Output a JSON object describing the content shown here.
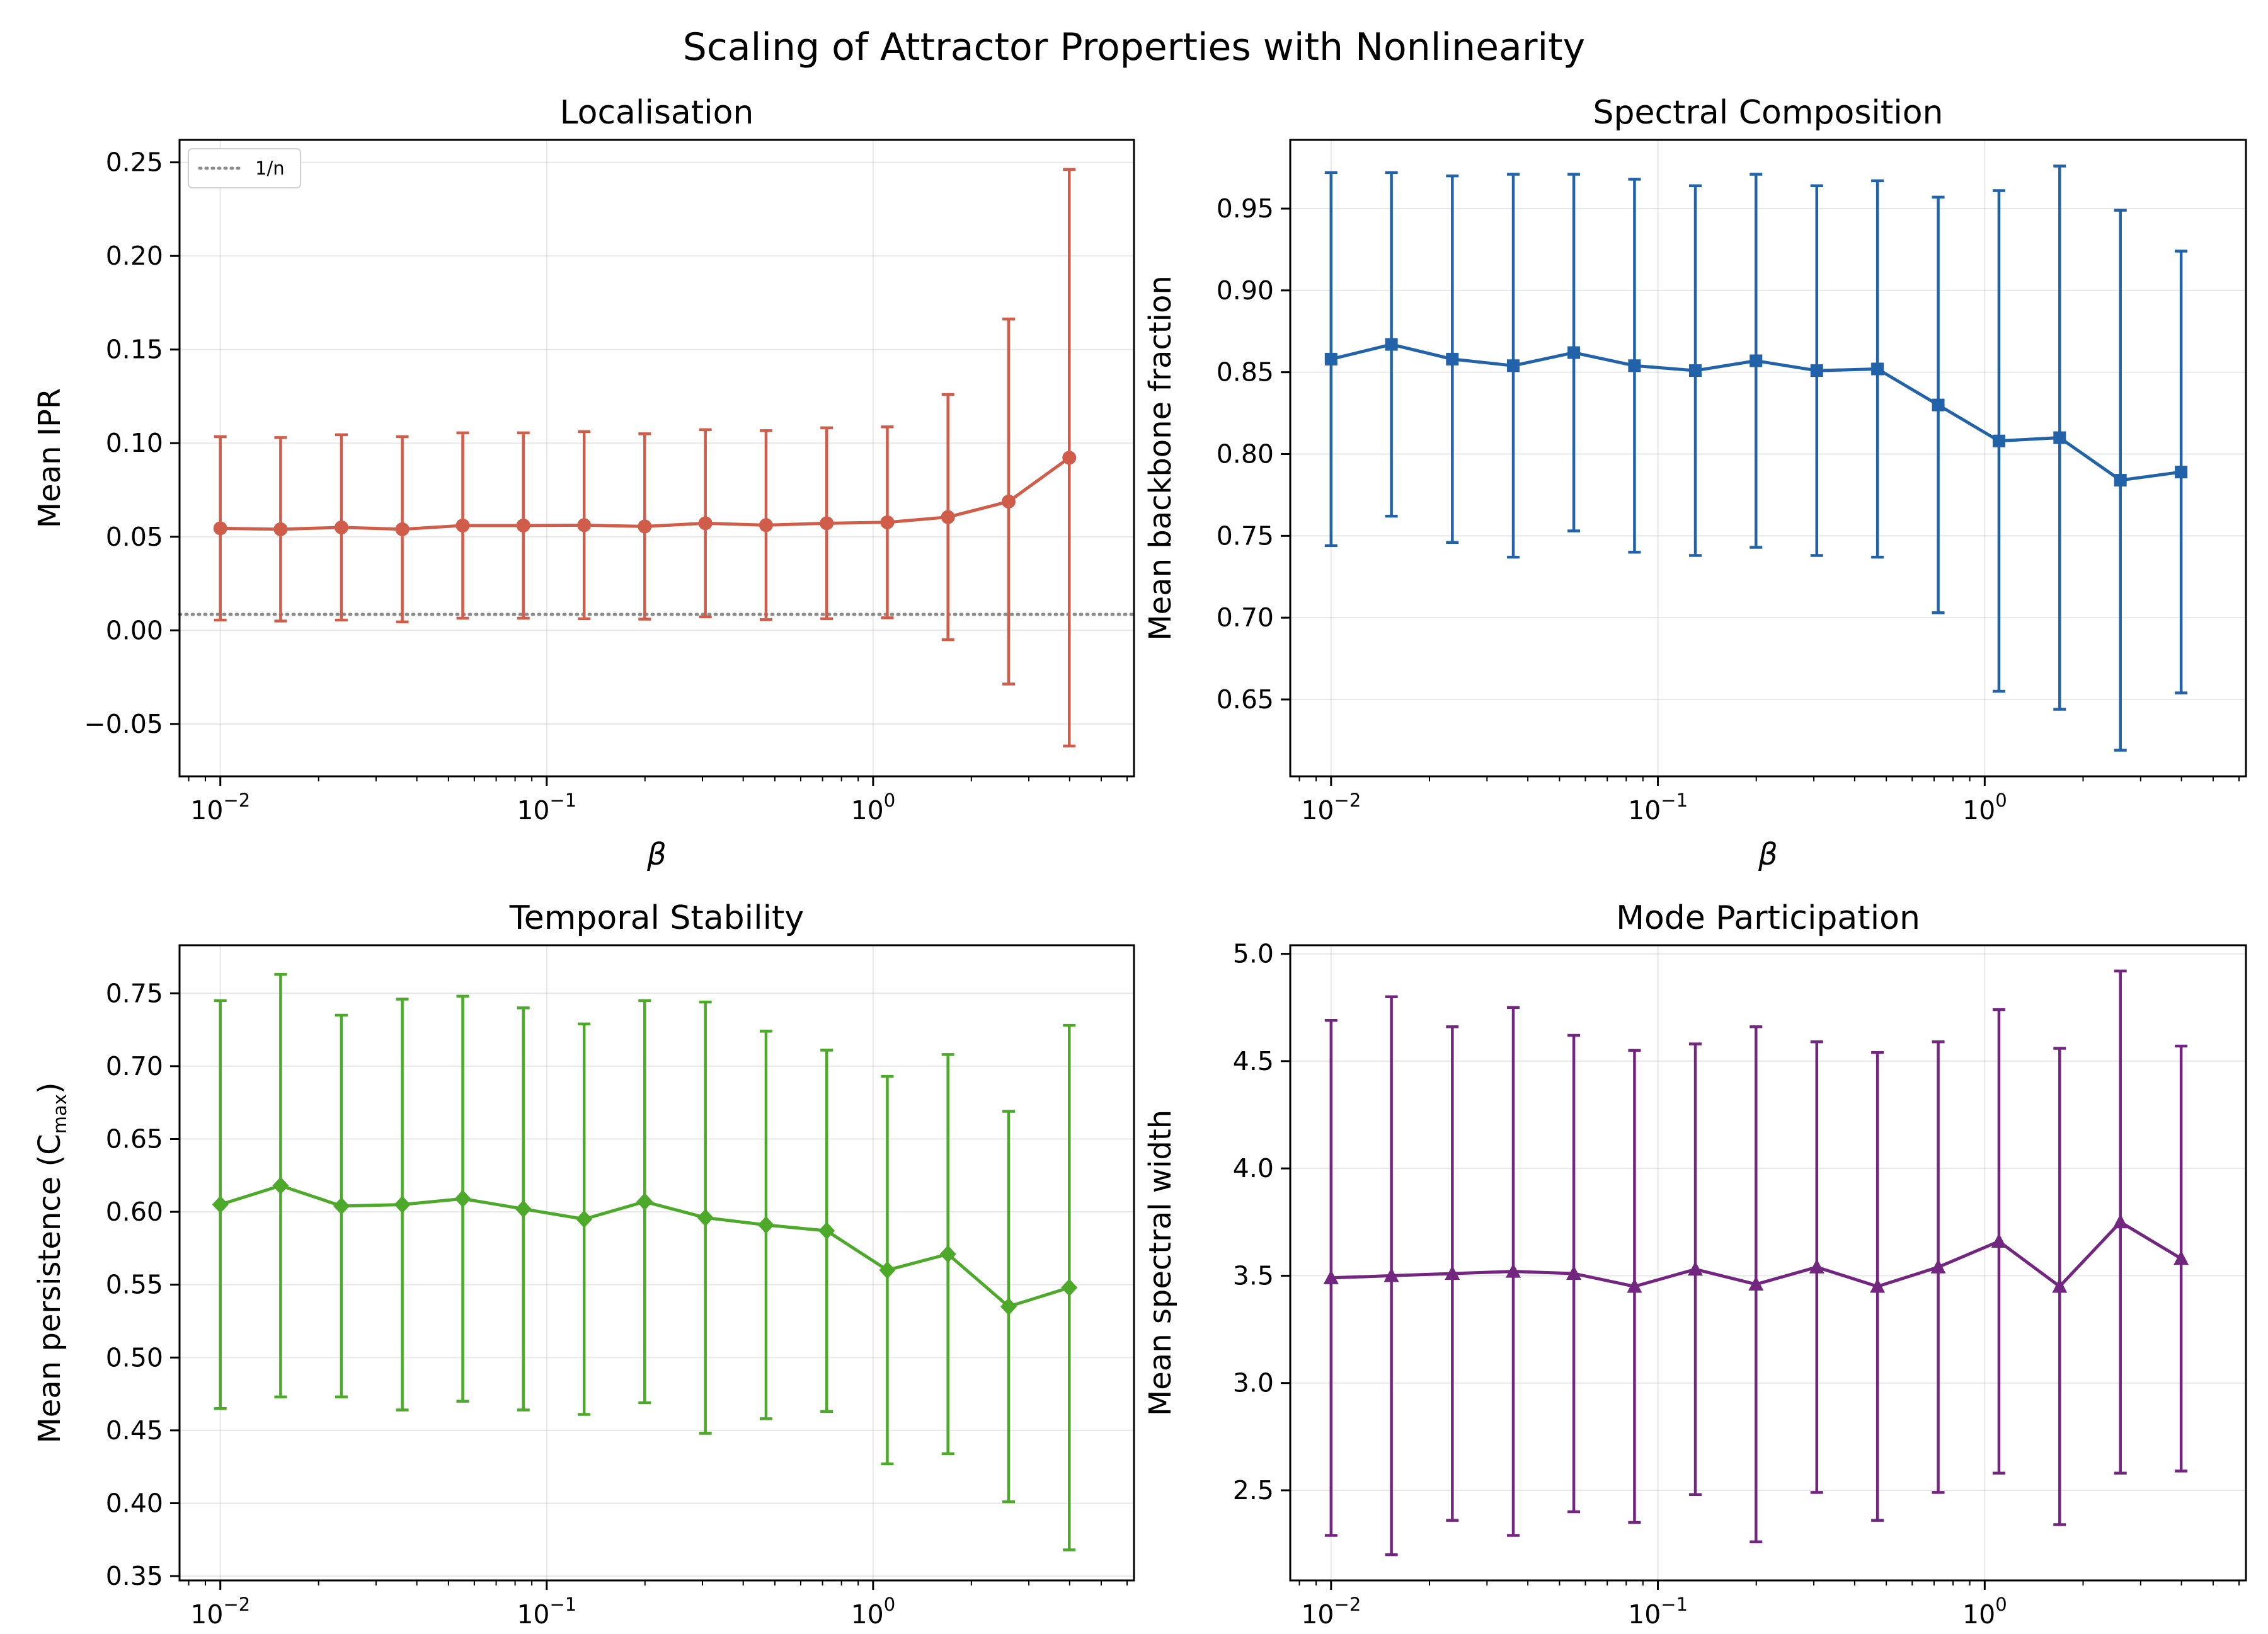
{
  "figure_title": "Scaling of Attractor Properties with Nonlinearity",
  "chart_data": [
    {
      "type": "line",
      "title": "Localisation",
      "xlabel": "β",
      "ylabel": "Mean IPR",
      "xscale": "log",
      "xlim": [
        0.0075,
        6.3
      ],
      "ylim": [
        -0.078,
        0.262
      ],
      "xticks": [
        {
          "value": 0.01,
          "base": "10",
          "exp": "−2"
        },
        {
          "value": 0.1,
          "base": "10",
          "exp": "−1"
        },
        {
          "value": 1,
          "base": "10",
          "exp": "0"
        }
      ],
      "yticks": [
        {
          "value": -0.05,
          "label": "−0.05"
        },
        {
          "value": 0.0,
          "label": "0.00"
        },
        {
          "value": 0.05,
          "label": "0.05"
        },
        {
          "value": 0.1,
          "label": "0.10"
        },
        {
          "value": 0.15,
          "label": "0.15"
        },
        {
          "value": 0.2,
          "label": "0.20"
        },
        {
          "value": 0.25,
          "label": "0.25"
        }
      ],
      "color": "#d05c4a",
      "marker": "circle",
      "grid": true,
      "legend": {
        "placement": "top-left",
        "entries": [
          {
            "label": "1/n",
            "style": "dotted",
            "color": "#8c8c8c"
          }
        ]
      },
      "reference_line": {
        "label": "1/n",
        "y": 0.0085
      },
      "x": [
        0.01,
        0.0153,
        0.0235,
        0.0361,
        0.0553,
        0.0848,
        0.1302,
        0.1996,
        0.3063,
        0.4698,
        0.7207,
        1.1055,
        1.6958,
        2.6014,
        3.9905
      ],
      "y": [
        0.0545,
        0.054,
        0.055,
        0.054,
        0.056,
        0.056,
        0.0562,
        0.0555,
        0.0572,
        0.0562,
        0.0572,
        0.0577,
        0.0605,
        0.0688,
        0.0922
      ],
      "err": [
        0.049,
        0.049,
        0.0495,
        0.0495,
        0.0495,
        0.0495,
        0.05,
        0.0495,
        0.05,
        0.0505,
        0.051,
        0.051,
        0.0655,
        0.0975,
        0.154
      ]
    },
    {
      "type": "line",
      "title": "Spectral Composition",
      "xlabel": "β",
      "ylabel": "Mean backbone fraction",
      "xscale": "log",
      "xlim": [
        0.0075,
        6.3
      ],
      "ylim": [
        0.603,
        0.992
      ],
      "xticks": [
        {
          "value": 0.01,
          "base": "10",
          "exp": "−2"
        },
        {
          "value": 0.1,
          "base": "10",
          "exp": "−1"
        },
        {
          "value": 1,
          "base": "10",
          "exp": "0"
        }
      ],
      "yticks": [
        {
          "value": 0.65,
          "label": "0.65"
        },
        {
          "value": 0.7,
          "label": "0.70"
        },
        {
          "value": 0.75,
          "label": "0.75"
        },
        {
          "value": 0.8,
          "label": "0.80"
        },
        {
          "value": 0.85,
          "label": "0.85"
        },
        {
          "value": 0.9,
          "label": "0.90"
        },
        {
          "value": 0.95,
          "label": "0.95"
        }
      ],
      "color": "#2262a8",
      "marker": "square",
      "grid": true,
      "x": [
        0.01,
        0.0153,
        0.0235,
        0.0361,
        0.0553,
        0.0848,
        0.1302,
        0.1996,
        0.3063,
        0.4698,
        0.7207,
        1.1055,
        1.6958,
        2.6014,
        3.9905
      ],
      "y": [
        0.858,
        0.867,
        0.858,
        0.854,
        0.862,
        0.854,
        0.851,
        0.857,
        0.851,
        0.852,
        0.83,
        0.808,
        0.81,
        0.784,
        0.789
      ],
      "err": [
        0.114,
        0.105,
        0.112,
        0.117,
        0.109,
        0.114,
        0.113,
        0.114,
        0.113,
        0.115,
        0.127,
        0.153,
        0.166,
        0.165,
        0.135
      ]
    },
    {
      "type": "line",
      "title": "Temporal Stability",
      "xlabel": "β",
      "ylabel": "Mean persistence (C",
      "ylabel_sub": "max",
      "ylabel_end": ")",
      "xscale": "log",
      "xlim": [
        0.0075,
        6.3
      ],
      "ylim": [
        0.347,
        0.783
      ],
      "xticks": [
        {
          "value": 0.01,
          "base": "10",
          "exp": "−2"
        },
        {
          "value": 0.1,
          "base": "10",
          "exp": "−1"
        },
        {
          "value": 1,
          "base": "10",
          "exp": "0"
        }
      ],
      "yticks": [
        {
          "value": 0.35,
          "label": "0.35"
        },
        {
          "value": 0.4,
          "label": "0.40"
        },
        {
          "value": 0.45,
          "label": "0.45"
        },
        {
          "value": 0.5,
          "label": "0.50"
        },
        {
          "value": 0.55,
          "label": "0.55"
        },
        {
          "value": 0.6,
          "label": "0.60"
        },
        {
          "value": 0.65,
          "label": "0.65"
        },
        {
          "value": 0.7,
          "label": "0.70"
        },
        {
          "value": 0.75,
          "label": "0.75"
        }
      ],
      "color": "#4ca92a",
      "marker": "diamond",
      "grid": true,
      "x": [
        0.01,
        0.0153,
        0.0235,
        0.0361,
        0.0553,
        0.0848,
        0.1302,
        0.1996,
        0.3063,
        0.4698,
        0.7207,
        1.1055,
        1.6958,
        2.6014,
        3.9905
      ],
      "y": [
        0.605,
        0.618,
        0.604,
        0.605,
        0.609,
        0.602,
        0.595,
        0.607,
        0.596,
        0.591,
        0.587,
        0.56,
        0.571,
        0.535,
        0.548
      ],
      "err": [
        0.14,
        0.145,
        0.131,
        0.141,
        0.139,
        0.138,
        0.134,
        0.138,
        0.148,
        0.133,
        0.124,
        0.133,
        0.137,
        0.134,
        0.18
      ]
    },
    {
      "type": "line",
      "title": "Mode Participation",
      "xlabel": "β",
      "ylabel": "Mean spectral width",
      "xscale": "log",
      "xlim": [
        0.0075,
        6.3
      ],
      "ylim": [
        2.08,
        5.04
      ],
      "xticks": [
        {
          "value": 0.01,
          "base": "10",
          "exp": "−2"
        },
        {
          "value": 0.1,
          "base": "10",
          "exp": "−1"
        },
        {
          "value": 1,
          "base": "10",
          "exp": "0"
        }
      ],
      "yticks": [
        {
          "value": 2.5,
          "label": "2.5"
        },
        {
          "value": 3.0,
          "label": "3.0"
        },
        {
          "value": 3.5,
          "label": "3.5"
        },
        {
          "value": 4.0,
          "label": "4.0"
        },
        {
          "value": 4.5,
          "label": "4.5"
        },
        {
          "value": 5.0,
          "label": "5.0"
        }
      ],
      "color": "#72267f",
      "marker": "triangle",
      "grid": true,
      "x": [
        0.01,
        0.0153,
        0.0235,
        0.0361,
        0.0553,
        0.0848,
        0.1302,
        0.1996,
        0.3063,
        0.4698,
        0.7207,
        1.1055,
        1.6958,
        2.6014,
        3.9905
      ],
      "y": [
        3.49,
        3.5,
        3.51,
        3.52,
        3.51,
        3.45,
        3.53,
        3.46,
        3.54,
        3.45,
        3.54,
        3.66,
        3.45,
        3.75,
        3.58
      ],
      "err": [
        1.2,
        1.3,
        1.15,
        1.23,
        1.11,
        1.1,
        1.05,
        1.2,
        1.05,
        1.09,
        1.05,
        1.08,
        1.11,
        1.17,
        0.99
      ]
    }
  ]
}
